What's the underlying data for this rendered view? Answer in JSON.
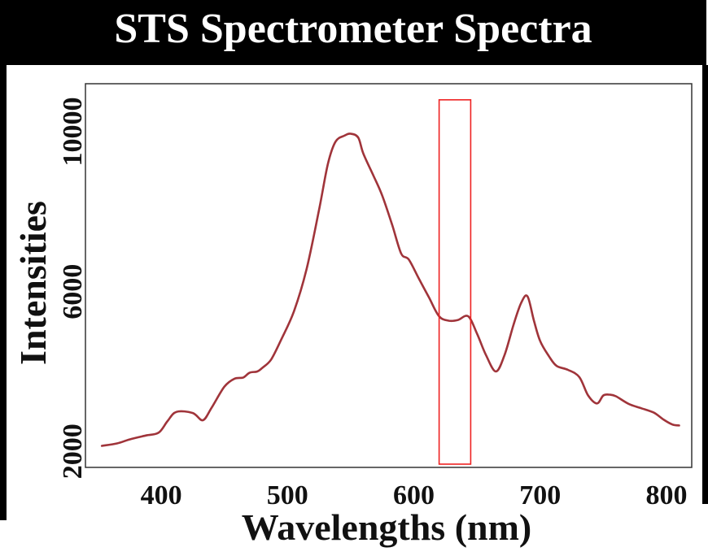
{
  "chart_data": {
    "type": "line",
    "title": "STS Spectrometer Spectra",
    "xlabel": "Wavelengths (nm)",
    "ylabel": "Intensities",
    "xlim": [
      340,
      820
    ],
    "ylim": [
      1600,
      11200
    ],
    "xticks": [
      400,
      500,
      600,
      700,
      800
    ],
    "yticks": [
      2000,
      6000,
      10000
    ],
    "grid": false,
    "line_color": "#a0343a",
    "highlight_color": "#ee2222",
    "highlight_region": {
      "x": [
        620,
        645
      ],
      "y": [
        1600,
        11000
      ]
    },
    "series": [
      {
        "x": [
          353,
          365,
          375,
          388,
          398,
          405,
          412,
          425,
          433,
          440,
          450,
          458,
          465,
          470,
          476,
          480,
          487,
          495,
          505,
          515,
          525,
          532,
          538,
          545,
          550,
          556,
          560,
          568,
          575,
          583,
          590,
          596,
          604,
          612,
          620,
          628,
          635,
          643,
          650,
          657,
          665,
          672,
          679,
          685,
          690,
          695,
          700,
          707,
          713,
          722,
          731,
          738,
          745,
          750,
          755,
          760,
          770,
          780,
          790,
          798,
          805,
          810
        ],
        "values": [
          2140,
          2200,
          2300,
          2400,
          2470,
          2760,
          2990,
          2960,
          2780,
          3100,
          3620,
          3820,
          3850,
          3970,
          4000,
          4090,
          4300,
          4800,
          5500,
          6550,
          8050,
          9200,
          9750,
          9900,
          9950,
          9850,
          9450,
          8900,
          8400,
          7650,
          6950,
          6800,
          6320,
          5850,
          5380,
          5270,
          5290,
          5380,
          4950,
          4420,
          4000,
          4430,
          5180,
          5720,
          5880,
          5280,
          4760,
          4380,
          4140,
          4040,
          3860,
          3400,
          3200,
          3400,
          3420,
          3380,
          3190,
          3080,
          2970,
          2790,
          2670,
          2650
        ]
      }
    ]
  }
}
